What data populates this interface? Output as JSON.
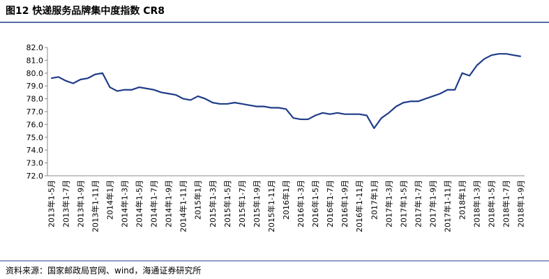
{
  "chart_data": {
    "type": "line",
    "title": "图12 快递服务品牌集中度指数 CR8",
    "source": "资料来源：国家邮政局官网、wind，海通证券研究所",
    "categories": [
      "2013年1-5月",
      null,
      "2013年1-7月",
      null,
      "2013年1-9月",
      null,
      "2013年1-11月",
      null,
      "2014年1月",
      null,
      "2014年1-3月",
      null,
      "2014年1-5月",
      null,
      "2014年1-7月",
      null,
      "2014年1-9月",
      null,
      "2014年1-11月",
      null,
      "2015年1月",
      null,
      "2015年1-3月",
      null,
      "2015年1-5月",
      null,
      "2015年1-7月",
      null,
      "2015年1-9月",
      null,
      "2015年1-11月",
      null,
      "2016年1月",
      null,
      "2016年1-3月",
      null,
      "2016年1-5月",
      null,
      "2016年1-7月",
      null,
      "2016年1-9月",
      null,
      "2016年1-11月",
      null,
      "2017年1月",
      null,
      "2017年1-3月",
      null,
      "2017年1-5月",
      null,
      "2017年1-7月",
      null,
      "2017年1-9月",
      null,
      "2017年1-11月",
      null,
      "2018年1月",
      null,
      "2018年1-3月",
      null,
      "2018年1-5月",
      null,
      "2018年1-7月",
      null,
      "2018年1-9月"
    ],
    "series": [
      {
        "name": "CR8",
        "color": "#1f3c88",
        "values": [
          79.6,
          79.7,
          79.4,
          79.2,
          79.5,
          79.6,
          79.9,
          80.0,
          78.9,
          78.6,
          78.7,
          78.7,
          78.9,
          78.8,
          78.7,
          78.5,
          78.4,
          78.3,
          78.0,
          77.9,
          78.2,
          78.0,
          77.7,
          77.6,
          77.6,
          77.7,
          77.6,
          77.5,
          77.4,
          77.4,
          77.3,
          77.3,
          77.2,
          76.5,
          76.4,
          76.4,
          76.7,
          76.9,
          76.8,
          76.9,
          76.8,
          76.8,
          76.8,
          76.7,
          75.7,
          76.5,
          76.9,
          77.4,
          77.7,
          77.8,
          77.8,
          78.0,
          78.2,
          78.4,
          78.7,
          78.7,
          80.0,
          79.8,
          80.6,
          81.1,
          81.4,
          81.5,
          81.5,
          81.4,
          81.3
        ]
      }
    ],
    "ylim": [
      72,
      82
    ],
    "yticks": [
      {
        "value": 72,
        "label": "72.0"
      },
      {
        "value": 73,
        "label": "73.0"
      },
      {
        "value": 74,
        "label": "74.0"
      },
      {
        "value": 75,
        "label": "75.0"
      },
      {
        "value": 76,
        "label": "76.0"
      },
      {
        "value": 77,
        "label": "77.0"
      },
      {
        "value": 78,
        "label": "78.0"
      },
      {
        "value": 79,
        "label": "79.0"
      },
      {
        "value": 80,
        "label": "80.0"
      },
      {
        "value": 81,
        "label": "81.0"
      },
      {
        "value": 82,
        "label": "82.0"
      }
    ],
    "grid": false
  }
}
